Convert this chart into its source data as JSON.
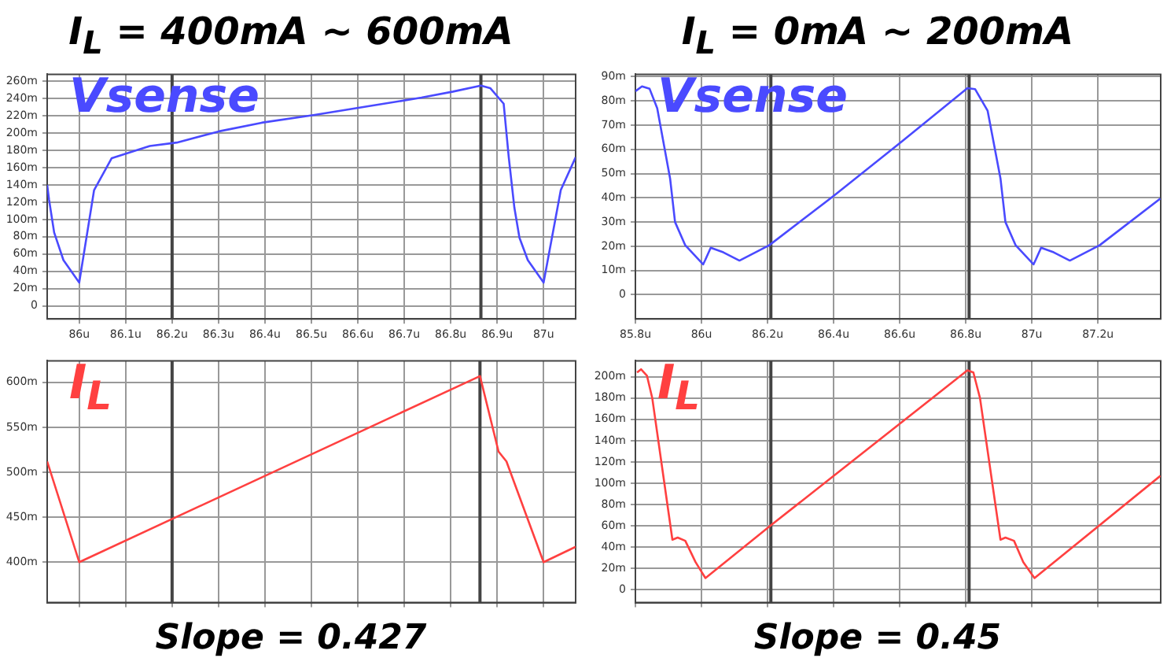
{
  "chart_data": [
    {
      "type": "line",
      "title": "I$_{L}$ = 400mA ~ 600mA",
      "x": [
        85.931,
        85.935,
        85.946,
        85.966,
        86.0,
        86.032,
        86.07,
        86.152,
        86.21,
        86.301,
        86.393,
        86.507,
        86.622,
        86.737,
        86.805,
        86.865,
        86.885,
        86.914,
        86.925,
        86.937,
        86.948,
        86.966,
        87.0,
        87.037,
        87.069
      ],
      "series": [
        {
          "name": "Vsense",
          "color": "#4a4aff",
          "values": [
            140,
            123,
            85,
            53,
            27,
            134,
            171,
            185,
            189,
            202,
            212,
            221,
            231,
            241,
            248,
            255,
            252,
            234,
            172,
            114,
            79,
            53,
            27,
            134,
            172
          ]
        }
      ],
      "xlim": [
        85.931,
        87.069
      ],
      "xticks": [
        {
          "value": 86,
          "label": "86u"
        },
        {
          "value": 86.1,
          "label": "86.1u"
        },
        {
          "value": 86.2,
          "label": "86.2u"
        },
        {
          "value": 86.3,
          "label": "86.3u"
        },
        {
          "value": 86.4,
          "label": "86.4u"
        },
        {
          "value": 86.5,
          "label": "86.5u"
        },
        {
          "value": 86.6,
          "label": "86.6u"
        },
        {
          "value": 86.7,
          "label": "86.7u"
        },
        {
          "value": 86.8,
          "label": "86.8u"
        },
        {
          "value": 86.9,
          "label": "86.9u"
        },
        {
          "value": 87,
          "label": "87u"
        }
      ],
      "ylim": [
        -15,
        268
      ],
      "yticks": [
        {
          "value": 0,
          "label": "0"
        },
        {
          "value": 20,
          "label": "20m"
        },
        {
          "value": 40,
          "label": "40m"
        },
        {
          "value": 60,
          "label": "60m"
        },
        {
          "value": 80,
          "label": "80m"
        },
        {
          "value": 100,
          "label": "100m"
        },
        {
          "value": 120,
          "label": "120m"
        },
        {
          "value": 140,
          "label": "140m"
        },
        {
          "value": 160,
          "label": "160m"
        },
        {
          "value": 180,
          "label": "180m"
        },
        {
          "value": 200,
          "label": "200m"
        },
        {
          "value": 220,
          "label": "220m"
        },
        {
          "value": 240,
          "label": "240m"
        },
        {
          "value": 260,
          "label": "260m"
        }
      ],
      "ref_lines": [
        {
          "axis": "x",
          "value": 86.2,
          "color": "#444444"
        },
        {
          "axis": "x",
          "value": 86.865,
          "color": "#444444"
        }
      ],
      "grid": true,
      "legend": false,
      "marker": "none",
      "line_style": "solid"
    },
    {
      "type": "line",
      "title": "I$_{L}$ = 0mA ~ 200mA",
      "x": [
        85.8,
        85.82,
        85.843,
        85.866,
        85.905,
        85.92,
        85.951,
        86.005,
        86.012,
        86.028,
        86.066,
        86.115,
        86.205,
        86.405,
        86.605,
        86.805,
        86.828,
        86.866,
        86.905,
        86.92,
        86.951,
        87.005,
        87.012,
        87.028,
        87.066,
        87.115,
        87.205,
        87.389
      ],
      "series": [
        {
          "name": "Vsense",
          "color": "#4a4aff",
          "values": [
            84,
            86,
            85,
            77,
            48,
            30,
            20.4,
            12.5,
            14.5,
            19.4,
            17.5,
            14.1,
            20.4,
            41.3,
            63.1,
            85.3,
            84.9,
            76,
            48,
            30,
            20.4,
            12.5,
            14.5,
            19.4,
            17.5,
            14.1,
            20.4,
            39.7
          ]
        }
      ],
      "xlim": [
        85.8,
        87.39
      ],
      "xticks": [
        {
          "value": 85.8,
          "label": "85.8u"
        },
        {
          "value": 86,
          "label": "86u"
        },
        {
          "value": 86.2,
          "label": "86.2u"
        },
        {
          "value": 86.4,
          "label": "86.4u"
        },
        {
          "value": 86.6,
          "label": "86.6u"
        },
        {
          "value": 86.8,
          "label": "86.8u"
        },
        {
          "value": 87,
          "label": "87u"
        },
        {
          "value": 87.2,
          "label": "87.2u"
        }
      ],
      "ylim": [
        -10,
        91
      ],
      "yticks": [
        {
          "value": 0,
          "label": "0"
        },
        {
          "value": 10,
          "label": "10m"
        },
        {
          "value": 20,
          "label": "20m"
        },
        {
          "value": 30,
          "label": "30m"
        },
        {
          "value": 40,
          "label": "40m"
        },
        {
          "value": 50,
          "label": "50m"
        },
        {
          "value": 60,
          "label": "60m"
        },
        {
          "value": 70,
          "label": "70m"
        },
        {
          "value": 80,
          "label": "80m"
        },
        {
          "value": 90,
          "label": "90m"
        }
      ],
      "ref_lines": [
        {
          "axis": "x",
          "value": 86.21,
          "color": "#444444"
        },
        {
          "axis": "x",
          "value": 86.81,
          "color": "#444444"
        }
      ],
      "grid": true,
      "legend": false,
      "marker": "none",
      "line_style": "solid"
    },
    {
      "type": "line",
      "x": [
        85.931,
        86.0,
        86.863,
        86.903,
        86.92,
        87.0,
        87.069
      ],
      "series": [
        {
          "name": "I$_{L}$",
          "color": "#ff4040",
          "values": [
            512,
            400,
            607,
            523,
            512,
            400,
            417
          ]
        }
      ],
      "xlim": [
        85.931,
        87.069
      ],
      "xticks": [
        {
          "value": 86,
          "label": null
        },
        {
          "value": 86.1,
          "label": null
        },
        {
          "value": 86.2,
          "label": null
        },
        {
          "value": 86.3,
          "label": null
        },
        {
          "value": 86.4,
          "label": null
        },
        {
          "value": 86.5,
          "label": null
        },
        {
          "value": 86.6,
          "label": null
        },
        {
          "value": 86.7,
          "label": null
        },
        {
          "value": 86.8,
          "label": null
        },
        {
          "value": 86.9,
          "label": null
        },
        {
          "value": 87,
          "label": null
        }
      ],
      "ylim": [
        355,
        624
      ],
      "yticks": [
        {
          "value": 400,
          "label": "400m"
        },
        {
          "value": 450,
          "label": "450m"
        },
        {
          "value": 500,
          "label": "500m"
        },
        {
          "value": 550,
          "label": "550m"
        },
        {
          "value": 600,
          "label": "600m"
        }
      ],
      "tick_labels": "y",
      "annotations": [
        "Slope = 0.427"
      ],
      "ref_lines": [
        {
          "axis": "x",
          "value": 86.2,
          "color": "#444444"
        },
        {
          "axis": "x",
          "value": 86.863,
          "color": "#444444"
        }
      ],
      "grid": true,
      "legend": false,
      "marker": "none",
      "line_style": "solid"
    },
    {
      "type": "line",
      "x": [
        85.805,
        85.817,
        85.835,
        85.851,
        85.912,
        85.928,
        85.951,
        85.982,
        86.012,
        86.212,
        86.805,
        86.823,
        86.843,
        86.905,
        86.92,
        86.946,
        86.974,
        87.008,
        87.389
      ],
      "series": [
        {
          "name": "I$_{L}$",
          "color": "#ff4040",
          "values": [
            204,
            207,
            201,
            180,
            47,
            49,
            46,
            26,
            11,
            61,
            206,
            204,
            180,
            47,
            49,
            46,
            26,
            11,
            107
          ]
        }
      ],
      "xlim": [
        85.8,
        87.39
      ],
      "xticks": [
        {
          "value": 85.8,
          "label": null
        },
        {
          "value": 86,
          "label": null
        },
        {
          "value": 86.2,
          "label": null
        },
        {
          "value": 86.4,
          "label": null
        },
        {
          "value": 86.6,
          "label": null
        },
        {
          "value": 86.8,
          "label": null
        },
        {
          "value": 87,
          "label": null
        },
        {
          "value": 87.2,
          "label": null
        }
      ],
      "ylim": [
        -12,
        215
      ],
      "yticks": [
        {
          "value": 0,
          "label": "0"
        },
        {
          "value": 20,
          "label": "20m"
        },
        {
          "value": 40,
          "label": "40m"
        },
        {
          "value": 60,
          "label": "60m"
        },
        {
          "value": 80,
          "label": "80m"
        },
        {
          "value": 100,
          "label": "100m"
        },
        {
          "value": 120,
          "label": "120m"
        },
        {
          "value": 140,
          "label": "140m"
        },
        {
          "value": 160,
          "label": "160m"
        },
        {
          "value": 180,
          "label": "180m"
        },
        {
          "value": 200,
          "label": "200m"
        }
      ],
      "tick_labels": "y",
      "annotations": [
        "Slope = 0.45"
      ],
      "ref_lines": [
        {
          "axis": "x",
          "value": 86.21,
          "color": "#444444"
        },
        {
          "axis": "x",
          "value": 86.81,
          "color": "#444444"
        }
      ],
      "grid": true,
      "legend": false,
      "marker": "none",
      "line_style": "solid"
    }
  ]
}
